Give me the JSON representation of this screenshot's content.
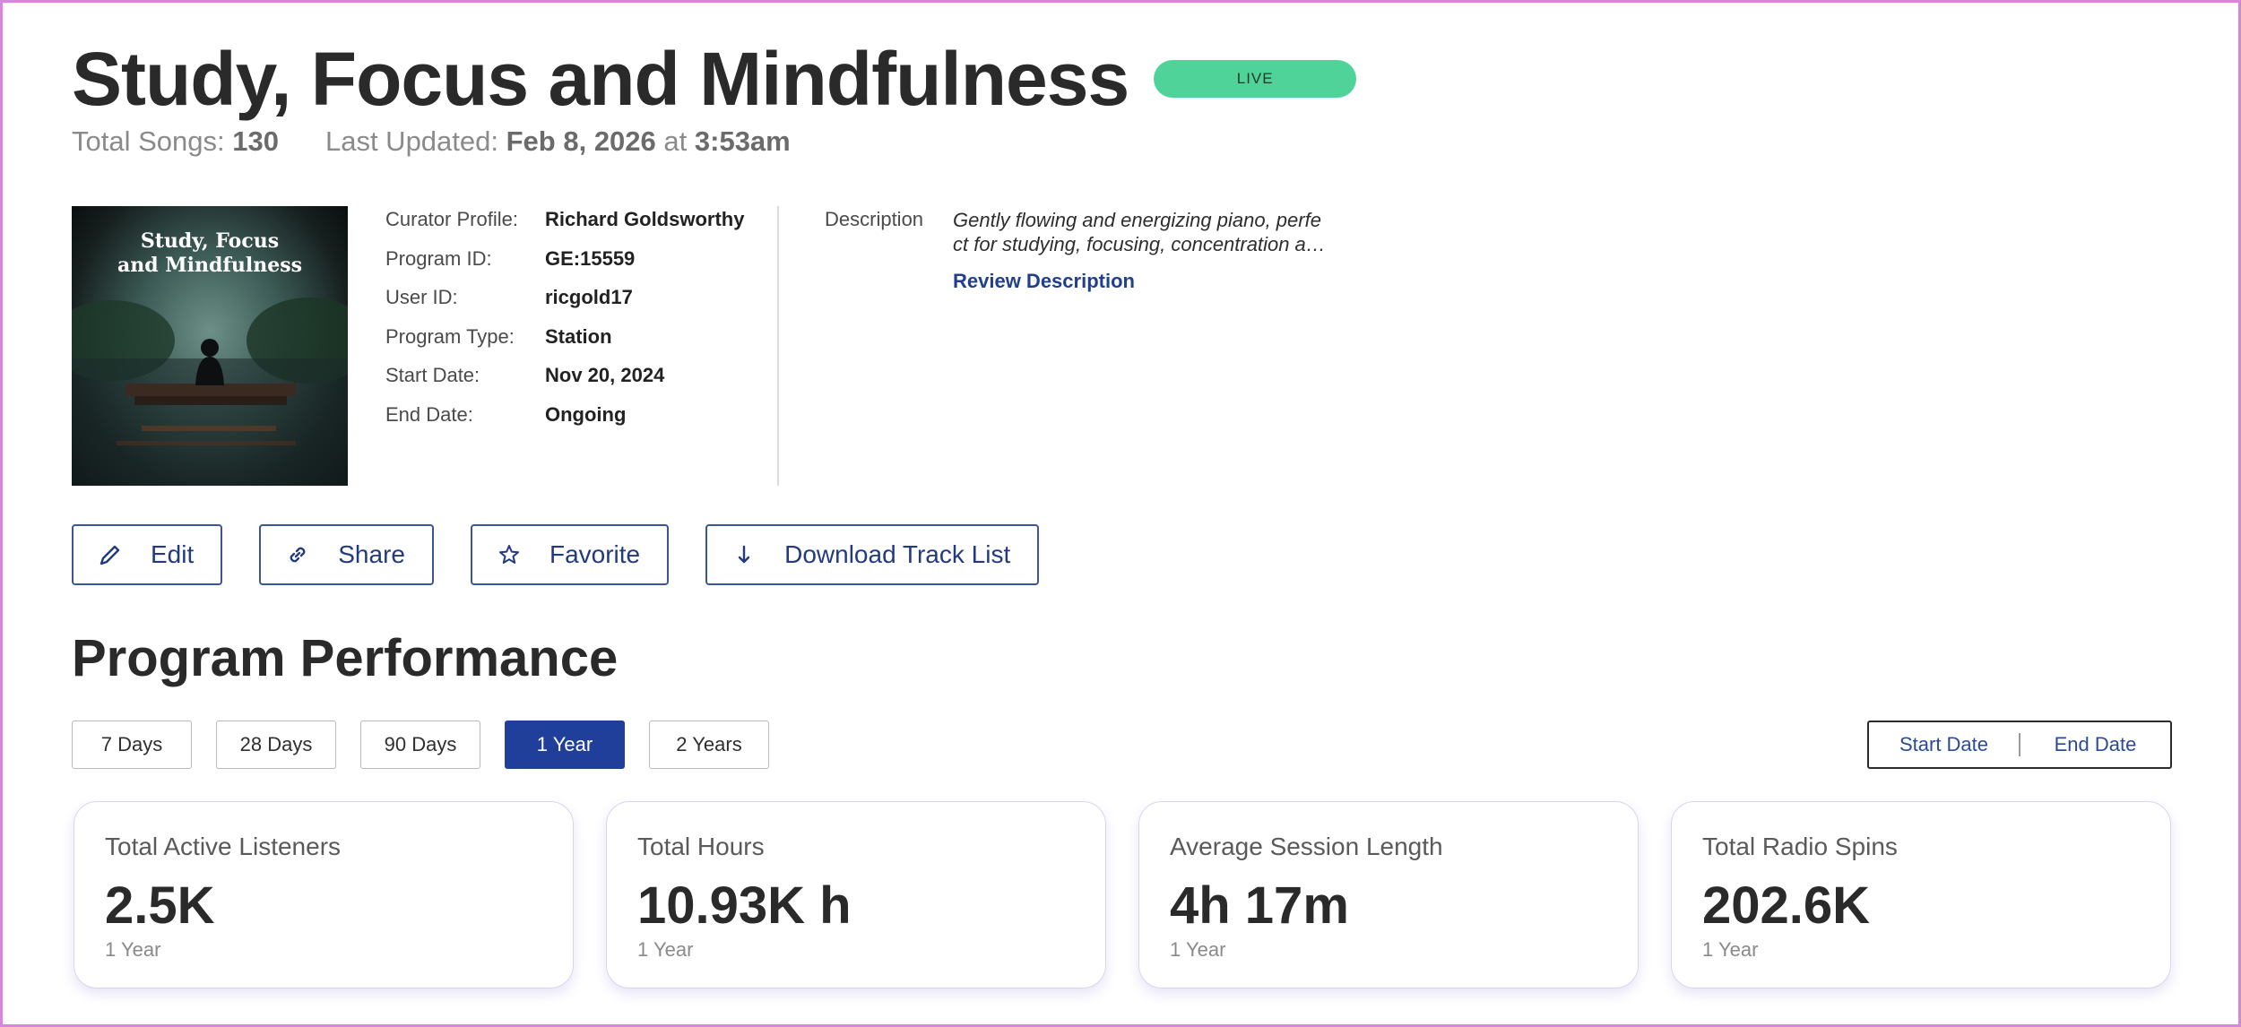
{
  "header": {
    "title": "Study, Focus and Mindfulness",
    "status_badge": "LIVE",
    "total_songs_label": "Total Songs:",
    "total_songs_value": "130",
    "last_updated_label": "Last Updated:",
    "last_updated_date": "Feb 8, 2026",
    "last_updated_at": "at",
    "last_updated_time": "3:53am"
  },
  "cover": {
    "line1": "Study, Focus",
    "line2": "and Mindfulness"
  },
  "details": [
    {
      "label": "Curator Profile:",
      "value": "Richard Goldsworthy"
    },
    {
      "label": "Program ID:",
      "value": "GE:15559"
    },
    {
      "label": "User ID:",
      "value": "ricgold17"
    },
    {
      "label": "Program Type:",
      "value": "Station"
    },
    {
      "label": "Start Date:",
      "value": "Nov 20, 2024"
    },
    {
      "label": "End Date:",
      "value": "Ongoing"
    }
  ],
  "description": {
    "label": "Description",
    "line1": "Gently flowing and energizing piano, perfe",
    "line2": "ct for studying, focusing, concentration a…",
    "review_link": "Review Description"
  },
  "actions": [
    {
      "label": "Edit",
      "icon": "pencil-icon"
    },
    {
      "label": "Share",
      "icon": "link-icon"
    },
    {
      "label": "Favorite",
      "icon": "star-icon"
    },
    {
      "label": "Download Track List",
      "icon": "download-arrow-icon"
    }
  ],
  "performance": {
    "title": "Program Performance",
    "ranges": [
      "7 Days",
      "28 Days",
      "90 Days",
      "1 Year",
      "2 Years"
    ],
    "active_range": "1 Year",
    "start_date_label": "Start Date",
    "end_date_label": "End Date",
    "cards": [
      {
        "label": "Total Active Listeners",
        "value": "2.5K",
        "period": "1 Year"
      },
      {
        "label": "Total Hours",
        "value": "10.93K h",
        "period": "1 Year"
      },
      {
        "label": "Average Session Length",
        "value": "4h 17m",
        "period": "1 Year"
      },
      {
        "label": "Total Radio Spins",
        "value": "202.6K",
        "period": "1 Year"
      }
    ]
  },
  "colors": {
    "accent": "#1f3f9a",
    "live_badge": "#4fd398",
    "frame": "#d985e0"
  }
}
